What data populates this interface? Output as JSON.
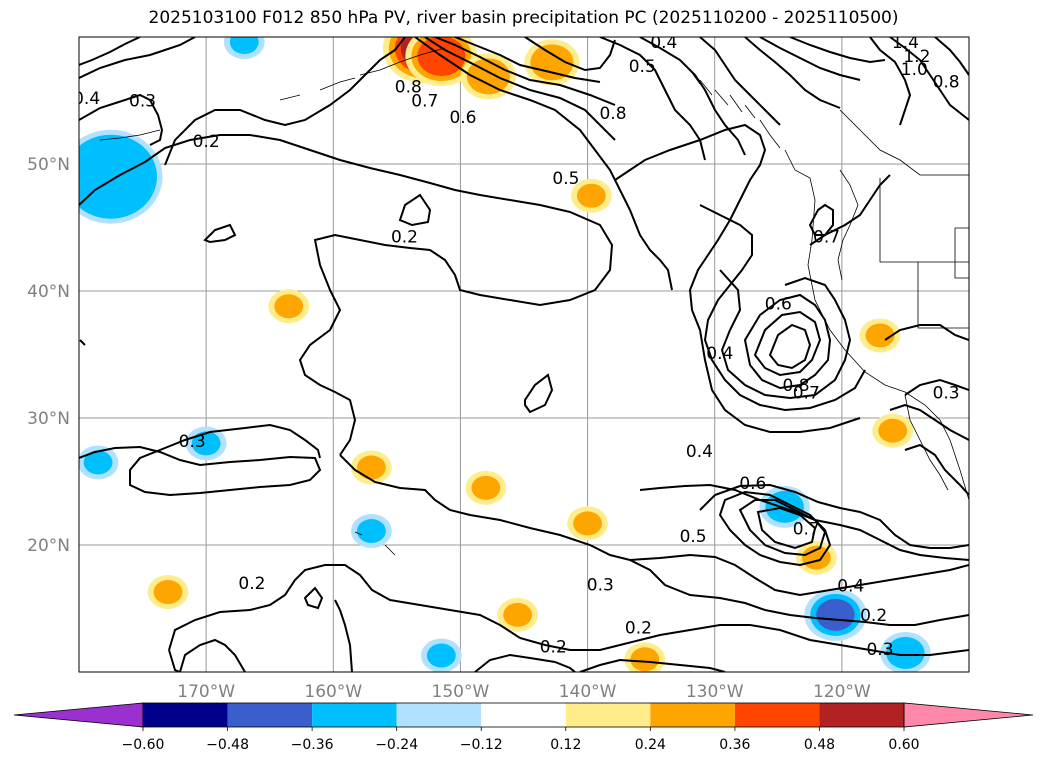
{
  "chart_data": {
    "type": "contour_map",
    "title": "2025103100 F012 850 hPa PV, river basin precipitation PC (2025110200 - 2025110500)",
    "lon_range": [
      -180,
      -110
    ],
    "lat_range": [
      10,
      60
    ],
    "lon_ticks": [
      -170,
      -160,
      -150,
      -140,
      -130,
      -120
    ],
    "lon_tick_labels": [
      "170°W",
      "160°W",
      "150°W",
      "140°W",
      "130°W",
      "120°W"
    ],
    "lat_ticks": [
      20,
      30,
      40,
      50
    ],
    "lat_tick_labels": [
      "20°N",
      "30°N",
      "40°N",
      "50°N"
    ],
    "grid": true,
    "contour_labels": [
      {
        "text": "0.4",
        "lon": -179.4,
        "lat": 55.2
      },
      {
        "text": "0.3",
        "lon": -175.0,
        "lat": 55.0
      },
      {
        "text": "0.2",
        "lon": -170.0,
        "lat": 51.8
      },
      {
        "text": "1.4",
        "lon": -115.0,
        "lat": 59.6
      },
      {
        "text": "1.2",
        "lon": -114.1,
        "lat": 58.5
      },
      {
        "text": "1.0",
        "lon": -114.3,
        "lat": 57.5
      },
      {
        "text": "0.8",
        "lon": -111.8,
        "lat": 56.5
      },
      {
        "text": "0.4",
        "lon": -134.0,
        "lat": 59.6
      },
      {
        "text": "0.5",
        "lon": -135.7,
        "lat": 57.7
      },
      {
        "text": "0.8",
        "lon": -154.1,
        "lat": 56.1
      },
      {
        "text": "0.7",
        "lon": -152.8,
        "lat": 55.0
      },
      {
        "text": "0.6",
        "lon": -149.8,
        "lat": 53.7
      },
      {
        "text": "0.8",
        "lon": -138.0,
        "lat": 54.0
      },
      {
        "text": "0.5",
        "lon": -141.7,
        "lat": 48.9
      },
      {
        "text": "0.2",
        "lon": -154.4,
        "lat": 44.3
      },
      {
        "text": "0.7",
        "lon": -121.2,
        "lat": 44.3
      },
      {
        "text": "0.6",
        "lon": -125.0,
        "lat": 39.0
      },
      {
        "text": "0.4",
        "lon": -129.6,
        "lat": 35.1
      },
      {
        "text": "0.8",
        "lon": -123.6,
        "lat": 32.6
      },
      {
        "text": "0.7",
        "lon": -122.8,
        "lat": 32.0
      },
      {
        "text": "0.3",
        "lon": -111.8,
        "lat": 32.0
      },
      {
        "text": "0.3",
        "lon": -171.1,
        "lat": 28.2
      },
      {
        "text": "0.4",
        "lon": -131.2,
        "lat": 27.4
      },
      {
        "text": "0.6",
        "lon": -127.0,
        "lat": 24.9
      },
      {
        "text": "0.5",
        "lon": -131.7,
        "lat": 20.7
      },
      {
        "text": "0.7",
        "lon": -122.8,
        "lat": 21.3
      },
      {
        "text": "0.3",
        "lon": -139.0,
        "lat": 16.9
      },
      {
        "text": "0.4",
        "lon": -119.3,
        "lat": 16.8
      },
      {
        "text": "0.2",
        "lon": -166.4,
        "lat": 17.0
      },
      {
        "text": "0.2",
        "lon": -136.0,
        "lat": 13.5
      },
      {
        "text": "0.2",
        "lon": -117.5,
        "lat": 14.5
      },
      {
        "text": "0.2",
        "lon": -142.7,
        "lat": 12.0
      },
      {
        "text": "0.3",
        "lon": -117.0,
        "lat": 11.8
      }
    ],
    "shaded_regions": [
      {
        "sign": "negative",
        "level": -0.48,
        "lon": -178.5,
        "lat": 49.0
      },
      {
        "sign": "negative",
        "level": -0.24,
        "lon": -177.5,
        "lat": 49.0
      },
      {
        "sign": "negative",
        "level": -0.24,
        "lon": -170.0,
        "lat": 28.0
      },
      {
        "sign": "negative",
        "level": -0.24,
        "lon": -178.5,
        "lat": 26.5
      },
      {
        "sign": "negative",
        "level": -0.24,
        "lon": -157.0,
        "lat": 21.1
      },
      {
        "sign": "negative",
        "level": -0.24,
        "lon": -151.5,
        "lat": 11.3
      },
      {
        "sign": "negative",
        "level": -0.48,
        "lon": -120.5,
        "lat": 14.5
      },
      {
        "sign": "negative",
        "level": -0.24,
        "lon": -115.0,
        "lat": 11.5
      },
      {
        "sign": "negative",
        "level": -0.24,
        "lon": -124.5,
        "lat": 23.0
      },
      {
        "sign": "negative",
        "level": -0.24,
        "lon": -167.0,
        "lat": 59.6
      },
      {
        "sign": "positive",
        "level": 0.48,
        "lon": -152.8,
        "lat": 59.1
      },
      {
        "sign": "positive",
        "level": 0.36,
        "lon": -151.5,
        "lat": 58.5
      },
      {
        "sign": "positive",
        "level": 0.24,
        "lon": -142.8,
        "lat": 58.0
      },
      {
        "sign": "positive",
        "level": 0.24,
        "lon": -147.8,
        "lat": 56.9
      },
      {
        "sign": "positive",
        "level": 0.24,
        "lon": -139.7,
        "lat": 47.5
      },
      {
        "sign": "positive",
        "level": 0.24,
        "lon": -163.5,
        "lat": 38.8
      },
      {
        "sign": "positive",
        "level": 0.24,
        "lon": -157.0,
        "lat": 26.1
      },
      {
        "sign": "positive",
        "level": 0.24,
        "lon": -148.0,
        "lat": 24.5
      },
      {
        "sign": "positive",
        "level": 0.24,
        "lon": -140.0,
        "lat": 21.7
      },
      {
        "sign": "positive",
        "level": 0.24,
        "lon": -173.0,
        "lat": 16.3
      },
      {
        "sign": "positive",
        "level": 0.24,
        "lon": -145.5,
        "lat": 14.5
      },
      {
        "sign": "positive",
        "level": 0.24,
        "lon": -135.5,
        "lat": 11.0
      },
      {
        "sign": "positive",
        "level": 0.24,
        "lon": -116.0,
        "lat": 29.0
      },
      {
        "sign": "positive",
        "level": 0.24,
        "lon": -117.0,
        "lat": 36.5
      },
      {
        "sign": "positive",
        "level": 0.24,
        "lon": -122.0,
        "lat": 19.0
      }
    ],
    "colorbar": {
      "ticks": [
        "−0.60",
        "−0.48",
        "−0.36",
        "−0.24",
        "−0.12",
        "0.12",
        "0.24",
        "0.36",
        "0.48",
        "0.60"
      ],
      "colors": [
        "#9b30d0",
        "#00008b",
        "#3a5fcd",
        "#00bfff",
        "#b0e2ff",
        "#ffffff",
        "#ffec8b",
        "#ffa500",
        "#ff4500",
        "#b22222",
        "#ff88aa"
      ],
      "extend": "both"
    }
  }
}
